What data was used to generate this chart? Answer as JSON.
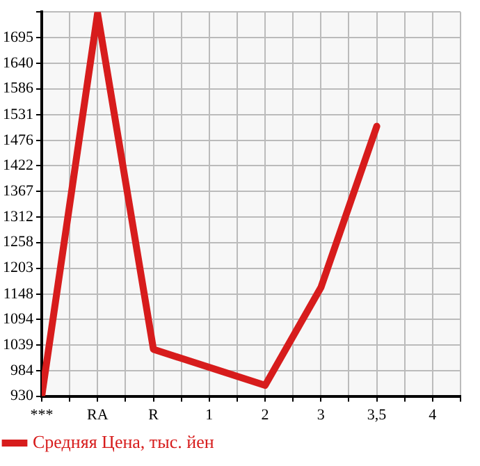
{
  "chart_data": {
    "type": "line",
    "categories": [
      "***",
      "RA",
      "R",
      "1",
      "2",
      "3",
      "3,5",
      "4"
    ],
    "series": [
      {
        "name": "Средняя Цена, тыс. йен",
        "color": "#d71c1c",
        "values": [
          930,
          1747,
          1030,
          null,
          953,
          1162,
          1506,
          null
        ]
      }
    ],
    "ylim": [
      930,
      1750
    ],
    "yticks": [
      930,
      984,
      1039,
      1094,
      1148,
      1203,
      1258,
      1312,
      1367,
      1422,
      1476,
      1531,
      1586,
      1640,
      1695,
      {
        "value": 1750,
        "label": null
      }
    ],
    "grid": true,
    "legend": "bottom",
    "marker": "none",
    "line_style": "solid"
  }
}
